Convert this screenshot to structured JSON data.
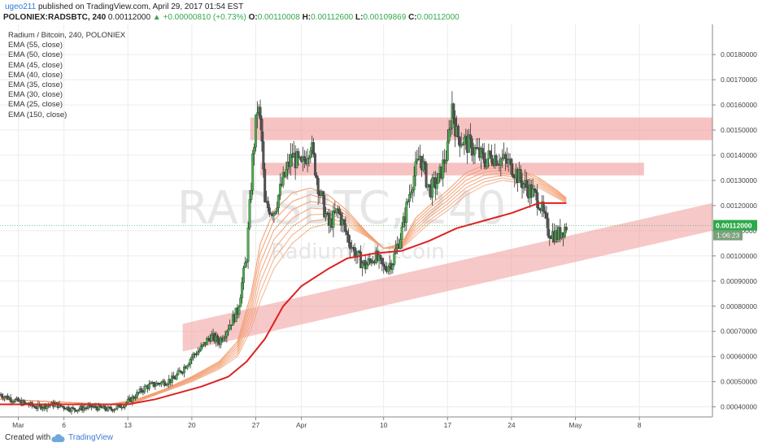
{
  "header": {
    "username": "ugeo211",
    "published_text": "published on TradingView.com, April 29, 2017 01:54 EST",
    "symbol": "POLONIEX:RADSBTC, 240",
    "price": "0.00112000",
    "change": "+0.00000810 (+0.73%)",
    "o_label": "O:",
    "o_value": "0.00110008",
    "h_label": "H:",
    "h_value": "0.00112600",
    "l_label": "L:",
    "l_value": "0.00109869",
    "c_label": "C:",
    "c_value": "0.00112000"
  },
  "legend": {
    "title": "Radium / Bitcoin, 240, POLONIEX",
    "items": [
      "EMA (55, close)",
      "EMA (50, close)",
      "EMA (45, close)",
      "EMA (40, close)",
      "EMA (35, close)",
      "EMA (30, close)",
      "EMA (25, close)",
      "EMA (150, close)"
    ]
  },
  "watermark": {
    "symbol": "RADSBTC, 240",
    "name": "Radium / Bitcoin"
  },
  "footer": {
    "created_with": "Created with",
    "brand": "TradingView"
  },
  "colors": {
    "up": "#4caf50",
    "down": "#555555",
    "ema150": "#dd2222",
    "ema_fan": "#f2a074",
    "zone": "#f19a9a",
    "last_price_badge": "#2ea94b",
    "countdown_badge": "#7aa07a"
  },
  "chart_data": {
    "type": "candlestick",
    "title": "Radium / Bitcoin, 240, POLONIEX",
    "ylim": [
      0.00036,
      0.00192
    ],
    "y_ticks": [
      "0.00180000",
      "0.00170000",
      "0.00160000",
      "0.00150000",
      "0.00140000",
      "0.00130000",
      "0.00120000",
      "0.00110000",
      "0.00100000",
      "0.00090000",
      "0.00080000",
      "0.00070000",
      "0.00060000",
      "0.00050000",
      "0.00040000"
    ],
    "x_ticks": [
      "Mar",
      "6",
      "13",
      "20",
      "27",
      "Apr",
      "10",
      "17",
      "24",
      "May",
      "8"
    ],
    "x_tick_days": [
      0,
      5,
      12,
      19,
      26,
      31,
      40,
      47,
      54,
      61,
      68
    ],
    "x_range_days": [
      -2,
      76
    ],
    "last_price_label": "0.00112000",
    "countdown_label": "1:06:23",
    "last_price": 0.00112,
    "closes": [
      [
        -2,
        0.00045
      ],
      [
        0,
        0.00042
      ],
      [
        2,
        0.0004
      ],
      [
        4,
        0.00041
      ],
      [
        6,
        0.00039
      ],
      [
        8,
        0.0004
      ],
      [
        10,
        0.00039
      ],
      [
        11,
        0.0004
      ],
      [
        12,
        0.00042
      ],
      [
        13,
        0.00045
      ],
      [
        14,
        0.00048
      ],
      [
        15,
        0.00049
      ],
      [
        16,
        0.0005
      ],
      [
        17,
        0.00051
      ],
      [
        18,
        0.00055
      ],
      [
        19,
        0.0006
      ],
      [
        20,
        0.00063
      ],
      [
        21,
        0.00068
      ],
      [
        22,
        0.00066
      ],
      [
        23,
        0.00072
      ],
      [
        24,
        0.00078
      ],
      [
        25,
        0.001
      ],
      [
        25.7,
        0.0014
      ],
      [
        26.2,
        0.0016
      ],
      [
        26.6,
        0.0015
      ],
      [
        27,
        0.0012
      ],
      [
        28,
        0.00118
      ],
      [
        29,
        0.0013
      ],
      [
        30,
        0.0014
      ],
      [
        31,
        0.00135
      ],
      [
        32,
        0.00145
      ],
      [
        33,
        0.00125
      ],
      [
        34,
        0.00112
      ],
      [
        35,
        0.00118
      ],
      [
        36,
        0.00108
      ],
      [
        37,
        0.001
      ],
      [
        38,
        0.00096
      ],
      [
        39,
        0.001
      ],
      [
        40,
        0.00095
      ],
      [
        41,
        0.00098
      ],
      [
        42,
        0.0011
      ],
      [
        43,
        0.00128
      ],
      [
        44,
        0.0014
      ],
      [
        45,
        0.00126
      ],
      [
        46,
        0.0013
      ],
      [
        47,
        0.00142
      ],
      [
        47.5,
        0.0016
      ],
      [
        48,
        0.00148
      ],
      [
        49,
        0.00145
      ],
      [
        50,
        0.00142
      ],
      [
        51,
        0.00138
      ],
      [
        52,
        0.0014
      ],
      [
        53,
        0.00138
      ],
      [
        54,
        0.00136
      ],
      [
        55,
        0.0013
      ],
      [
        56,
        0.00126
      ],
      [
        57,
        0.00122
      ],
      [
        58,
        0.0011
      ],
      [
        59,
        0.00108
      ],
      [
        60,
        0.00112
      ]
    ],
    "ema150": [
      [
        -2,
        0.00041
      ],
      [
        5,
        0.00041
      ],
      [
        12,
        0.00041
      ],
      [
        15,
        0.00043
      ],
      [
        20,
        0.00048
      ],
      [
        23,
        0.00052
      ],
      [
        25,
        0.00058
      ],
      [
        27,
        0.00067
      ],
      [
        29,
        0.0008
      ],
      [
        31,
        0.00088
      ],
      [
        34,
        0.00095
      ],
      [
        36,
        0.00099
      ],
      [
        39,
        0.00101
      ],
      [
        42,
        0.00102
      ],
      [
        45,
        0.00106
      ],
      [
        48,
        0.00111
      ],
      [
        51,
        0.00114
      ],
      [
        54,
        0.00117
      ],
      [
        57,
        0.00121
      ],
      [
        60,
        0.00121
      ]
    ],
    "ema_fan_top": [
      [
        -2,
        0.00043
      ],
      [
        10,
        0.00041
      ],
      [
        13,
        0.00043
      ],
      [
        16,
        0.00047
      ],
      [
        19,
        0.00052
      ],
      [
        22,
        0.00058
      ],
      [
        24,
        0.00066
      ],
      [
        25.5,
        0.00085
      ],
      [
        26.5,
        0.00105
      ],
      [
        28,
        0.00118
      ],
      [
        30,
        0.00125
      ],
      [
        32,
        0.00127
      ],
      [
        34,
        0.00124
      ],
      [
        36,
        0.00118
      ],
      [
        38,
        0.0011
      ],
      [
        40,
        0.00103
      ],
      [
        42,
        0.00105
      ],
      [
        43.5,
        0.00115
      ],
      [
        45,
        0.0012
      ],
      [
        47,
        0.00126
      ],
      [
        49,
        0.00133
      ],
      [
        51,
        0.00136
      ],
      [
        53,
        0.00136
      ],
      [
        55,
        0.00134
      ],
      [
        57,
        0.00131
      ],
      [
        59,
        0.00126
      ],
      [
        60,
        0.00123
      ]
    ],
    "ema_fan_bottom": [
      [
        -2,
        0.00043
      ],
      [
        10,
        0.00041
      ],
      [
        13,
        0.00042
      ],
      [
        16,
        0.00046
      ],
      [
        19,
        0.0005
      ],
      [
        22,
        0.00055
      ],
      [
        24,
        0.0006
      ],
      [
        25.5,
        0.00071
      ],
      [
        26.5,
        0.00082
      ],
      [
        28,
        0.00095
      ],
      [
        30,
        0.00105
      ],
      [
        32,
        0.00111
      ],
      [
        34,
        0.00113
      ],
      [
        36,
        0.00112
      ],
      [
        38,
        0.00108
      ],
      [
        40,
        0.00103
      ],
      [
        42,
        0.00103
      ],
      [
        43.5,
        0.00108
      ],
      [
        45,
        0.00113
      ],
      [
        47,
        0.00118
      ],
      [
        49,
        0.00124
      ],
      [
        51,
        0.00128
      ],
      [
        53,
        0.0013
      ],
      [
        55,
        0.00129
      ],
      [
        57,
        0.00127
      ],
      [
        59,
        0.00123
      ],
      [
        60,
        0.00121
      ]
    ],
    "zones": [
      {
        "name": "resistance-upper",
        "x": [
          25.4,
          76
        ],
        "y": [
          0.00146,
          0.00155
        ]
      },
      {
        "name": "resistance-lower",
        "x": [
          26.5,
          68.5
        ],
        "y": [
          0.00132,
          0.00137
        ]
      }
    ],
    "support_channel": {
      "bottom": [
        [
          18,
          0.00062
        ],
        [
          76,
          0.0011
        ]
      ],
      "top": [
        [
          18,
          0.00073
        ],
        [
          76,
          0.00121
        ]
      ]
    }
  }
}
